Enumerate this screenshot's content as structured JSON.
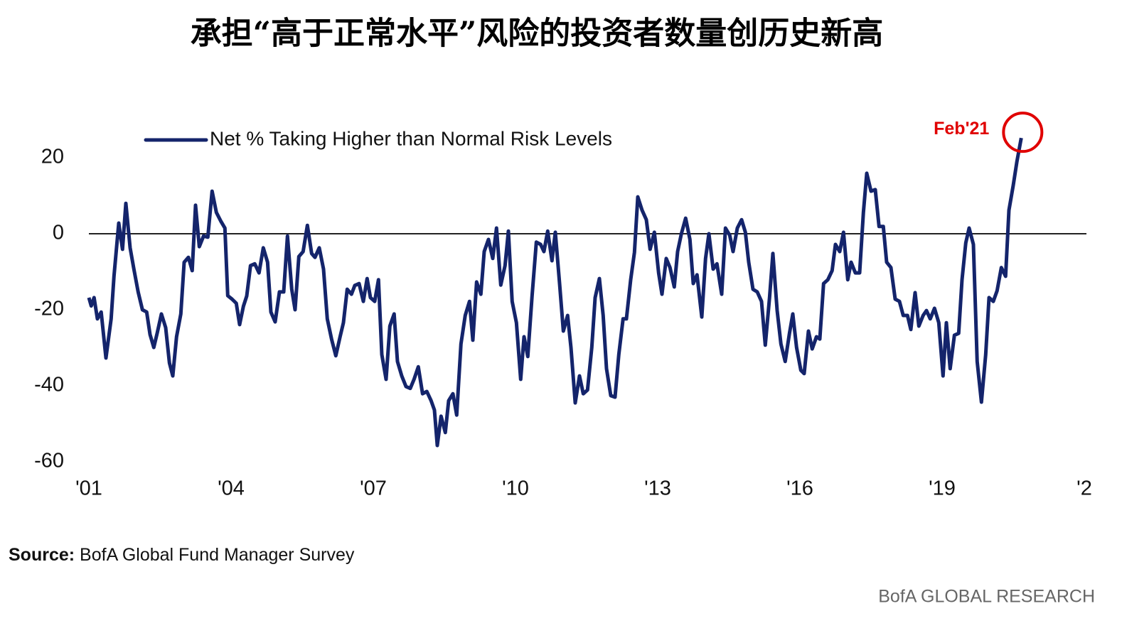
{
  "chart_data": {
    "type": "line",
    "title": "承担“高于正常水平”风险的投资者数量创历史新高",
    "source_label": "Source:",
    "source": "BofA Global Fund Manager Survey",
    "brand": "BofA GLOBAL RESEARCH",
    "annotations": [
      {
        "text": "Feb'21",
        "color": "#e00000"
      }
    ],
    "legend": "top-left",
    "grid": false,
    "zero_line": true,
    "xlim": [
      2001,
      2022
    ],
    "xticks": [
      {
        "value": 2001,
        "label": "'01"
      },
      {
        "value": 2004,
        "label": "'04"
      },
      {
        "value": 2007,
        "label": "'07"
      },
      {
        "value": 2010,
        "label": "'10"
      },
      {
        "value": 2013,
        "label": "'13"
      },
      {
        "value": 2016,
        "label": "'16"
      },
      {
        "value": 2019,
        "label": "'19"
      },
      {
        "value": 2022,
        "label": "'2"
      }
    ],
    "ylim": [
      -60,
      30
    ],
    "yticks": [
      -60,
      -40,
      -20,
      0,
      20
    ],
    "x": [
      2001.0,
      2001.05,
      2001.11,
      2001.18,
      2001.26,
      2001.36,
      2001.47,
      2001.53,
      2001.63,
      2001.71,
      2001.78,
      2001.87,
      2001.95,
      2002.04,
      2002.13,
      2002.22,
      2002.29,
      2002.37,
      2002.44,
      2002.53,
      2002.62,
      2002.7,
      2002.77,
      2002.85,
      2002.94,
      2003.01,
      2003.1,
      2003.18,
      2003.25,
      2003.33,
      2003.42,
      2003.51,
      2003.6,
      2003.69,
      2003.78,
      2003.87,
      2003.93,
      2004.02,
      2004.11,
      2004.18,
      2004.26,
      2004.33,
      2004.41,
      2004.5,
      2004.59,
      2004.68,
      2004.77,
      2004.84,
      2004.93,
      2005.02,
      2005.11,
      2005.19,
      2005.28,
      2005.35,
      2005.43,
      2005.52,
      2005.61,
      2005.7,
      2005.77,
      2005.86,
      2005.95,
      2006.03,
      2006.12,
      2006.21,
      2006.3,
      2006.37,
      2006.45,
      2006.54,
      2006.61,
      2006.7,
      2006.79,
      2006.87,
      2006.94,
      2007.03,
      2007.11,
      2007.18,
      2007.27,
      2007.35,
      2007.44,
      2007.51,
      2007.6,
      2007.69,
      2007.78,
      2007.86,
      2007.95,
      2008.04,
      2008.13,
      2008.22,
      2008.29,
      2008.35,
      2008.43,
      2008.52,
      2008.59,
      2008.68,
      2008.76,
      2008.85,
      2008.94,
      2009.03,
      2009.1,
      2009.18,
      2009.27,
      2009.34,
      2009.43,
      2009.52,
      2009.6,
      2009.69,
      2009.78,
      2009.85,
      2009.93,
      2010.02,
      2010.11,
      2010.18,
      2010.26,
      2010.35,
      2010.44,
      2010.53,
      2010.6,
      2010.68,
      2010.77,
      2010.84,
      2010.93,
      2011.01,
      2011.1,
      2011.17,
      2011.26,
      2011.35,
      2011.43,
      2011.52,
      2011.61,
      2011.68,
      2011.77,
      2011.85,
      2011.92,
      2012.01,
      2012.1,
      2012.18,
      2012.27,
      2012.34,
      2012.43,
      2012.51,
      2012.58,
      2012.67,
      2012.76,
      2012.84,
      2012.93,
      2013.02,
      2013.09,
      2013.18,
      2013.26,
      2013.35,
      2013.42,
      2013.5,
      2013.59,
      2013.68,
      2013.75,
      2013.83,
      2013.93,
      2014.01,
      2014.08,
      2014.17,
      2014.25,
      2014.35,
      2014.43,
      2014.52,
      2014.59,
      2014.68,
      2014.77,
      2014.85,
      2014.92,
      2015.01,
      2015.1,
      2015.19,
      2015.27,
      2015.36,
      2015.43,
      2015.52,
      2015.6,
      2015.69,
      2015.78,
      2015.85,
      2015.93,
      2016.02,
      2016.09,
      2016.18,
      2016.26,
      2016.35,
      2016.42,
      2016.5,
      2016.59,
      2016.68,
      2016.75,
      2016.84,
      2016.92,
      2017.01,
      2017.08,
      2017.17,
      2017.26,
      2017.34,
      2017.41,
      2017.5,
      2017.59,
      2017.67,
      2017.76,
      2017.83,
      2017.92,
      2018.01,
      2018.1,
      2018.18,
      2018.27,
      2018.34,
      2018.43,
      2018.51,
      2018.6,
      2018.67,
      2018.75,
      2018.84,
      2018.93,
      2019.02,
      2019.09,
      2019.17,
      2019.26,
      2019.35,
      2019.42,
      2019.5,
      2019.57,
      2019.66,
      2019.74,
      2019.83,
      2019.92,
      2019.99,
      2020.08,
      2020.16,
      2020.25,
      2020.34,
      2020.41,
      2020.5,
      2020.58,
      2020.67
    ],
    "series": [
      {
        "name": "Net % Taking Higher than Normal Risk Levels",
        "color": "#14246b",
        "values": [
          -16.8,
          -19,
          -16.8,
          -22.4,
          -20.6,
          -32.7,
          -22.4,
          -11.2,
          2.8,
          -4.1,
          8,
          -3.7,
          -9.3,
          -15.3,
          -20,
          -20.6,
          -26.5,
          -29.9,
          -26.2,
          -21.1,
          -24.7,
          -34,
          -37.4,
          -27.1,
          -21.1,
          -7.5,
          -6.2,
          -9.7,
          7.5,
          -3.4,
          -0.6,
          -0.9,
          11.2,
          5.6,
          3.4,
          1.5,
          -16.3,
          -17.2,
          -18.3,
          -23.9,
          -19.1,
          -16.4,
          -8.4,
          -7.9,
          -10.3,
          -3.7,
          -7.5,
          -20.6,
          -23.2,
          -15.3,
          -15.3,
          -0.6,
          -14.6,
          -20,
          -6,
          -4.7,
          2.2,
          -5.2,
          -6.2,
          -3.7,
          -9.3,
          -22.4,
          -27.7,
          -32.1,
          -27.1,
          -23.4,
          -14.6,
          -15.9,
          -13.6,
          -13.1,
          -17.8,
          -11.8,
          -16.8,
          -17.8,
          -12.1,
          -31.8,
          -38.3,
          -24.3,
          -21.1,
          -33.6,
          -37.4,
          -40.2,
          -40.7,
          -38.3,
          -35,
          -42.1,
          -41.5,
          -43.9,
          -46.4,
          -55.7,
          -48,
          -52.3,
          -43.9,
          -42.1,
          -47.7,
          -29,
          -21.5,
          -17.8,
          -28,
          -12.7,
          -15.9,
          -4.7,
          -1.5,
          -6.5,
          1.5,
          -13.5,
          -8.4,
          0.7,
          -17.8,
          -23.4,
          -38.3,
          -27.1,
          -32.3,
          -16.4,
          -2.2,
          -2.8,
          -4.7,
          0.7,
          -7.1,
          0.4,
          -13.1,
          -25.6,
          -21.5,
          -29.9,
          -44.5,
          -37.4,
          -42.1,
          -41.1,
          -29.9,
          -16.8,
          -11.8,
          -21.5,
          -35.5,
          -42.6,
          -43,
          -31.8,
          -22.4,
          -22.4,
          -12.1,
          -4.9,
          9.7,
          6.2,
          3.7,
          -4.1,
          0.4,
          -10.3,
          -15.9,
          -6.5,
          -8.9,
          -14,
          -4.7,
          0,
          4.1,
          -1.5,
          -13.1,
          -10.8,
          -21.9,
          -6.5,
          0,
          -9.3,
          -7.9,
          -15.9,
          1.5,
          -0.4,
          -4.7,
          1.5,
          3.7,
          0.4,
          -7.5,
          -14.6,
          -15.3,
          -17.8,
          -29.3,
          -16.8,
          -5.2,
          -20.2,
          -29,
          -33.6,
          -26.2,
          -21.1,
          -29.9,
          -35.9,
          -36.8,
          -25.6,
          -30.3,
          -27.1,
          -27.7,
          -13.1,
          -12.1,
          -9.7,
          -2.8,
          -4.7,
          0.4,
          -12.1,
          -7.5,
          -10.3,
          -10.3,
          5.6,
          15.9,
          11.2,
          11.6,
          1.9,
          1.9,
          -7.5,
          -8.9,
          -17.2,
          -17.8,
          -21.5,
          -21.5,
          -25.2,
          -15.5,
          -24.3,
          -21.5,
          -20.2,
          -22.4,
          -19.6,
          -23.4,
          -37.4,
          -23.4,
          -35.5,
          -26.7,
          -26.2,
          -12.1,
          -2.4,
          1.5,
          -2.8,
          -33.6,
          -44.3,
          -31.8,
          -16.8,
          -17.8,
          -15,
          -8.9,
          -11.2,
          6.2,
          12.7,
          19.1,
          25.2
        ]
      }
    ]
  }
}
